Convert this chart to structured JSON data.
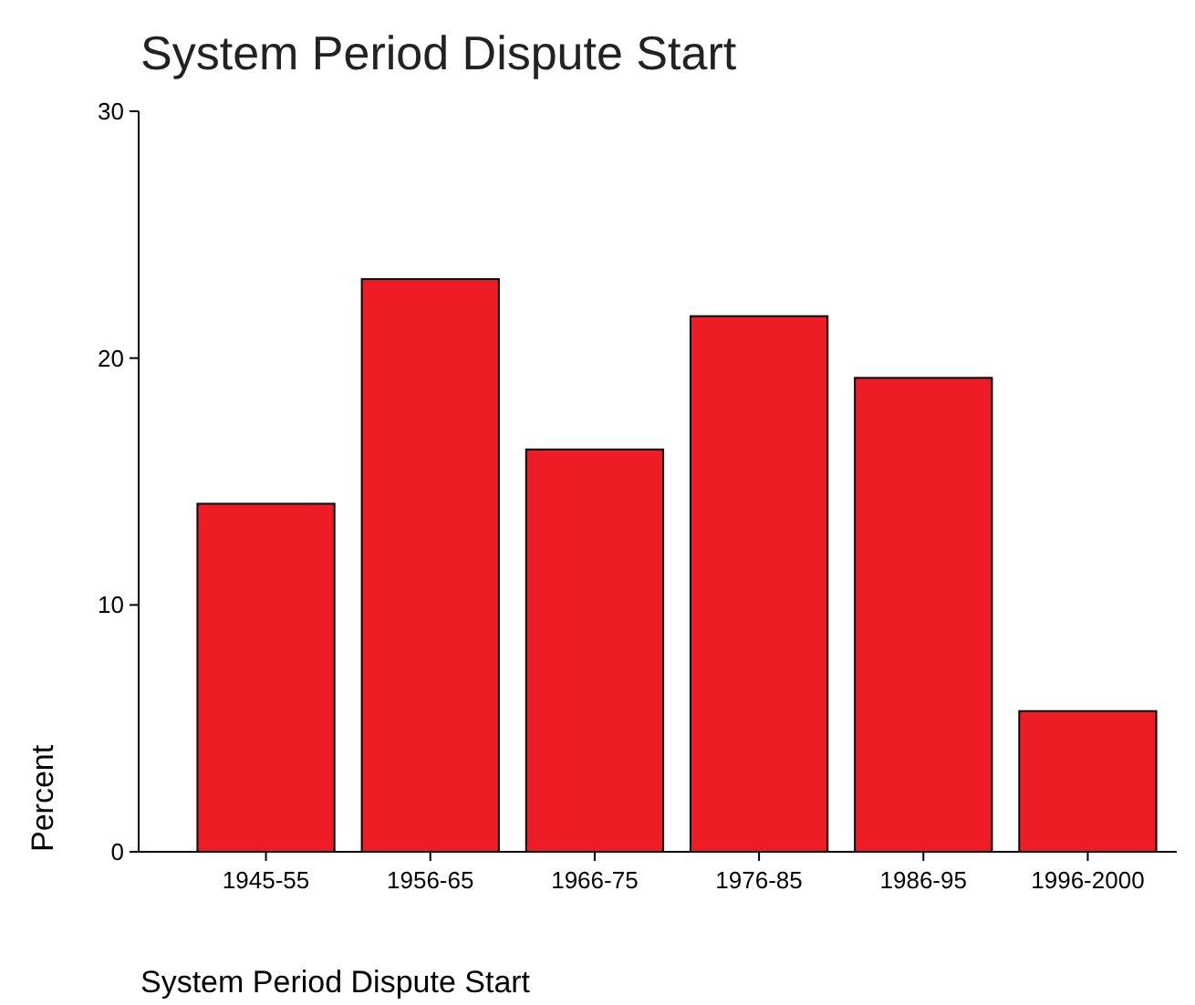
{
  "chart_data": {
    "type": "bar",
    "title": "System Period Dispute Start",
    "xlabel": "System Period Dispute Start",
    "ylabel": "Percent",
    "categories": [
      "1945-55",
      "1956-65",
      "1966-75",
      "1976-85",
      "1986-95",
      "1996-2000"
    ],
    "values": [
      14.1,
      23.2,
      16.3,
      21.7,
      19.2,
      5.7
    ],
    "color": "#ee1c25",
    "ylim": [
      0,
      30
    ],
    "yticks": [
      0,
      10,
      20,
      30
    ],
    "grid": false
  }
}
